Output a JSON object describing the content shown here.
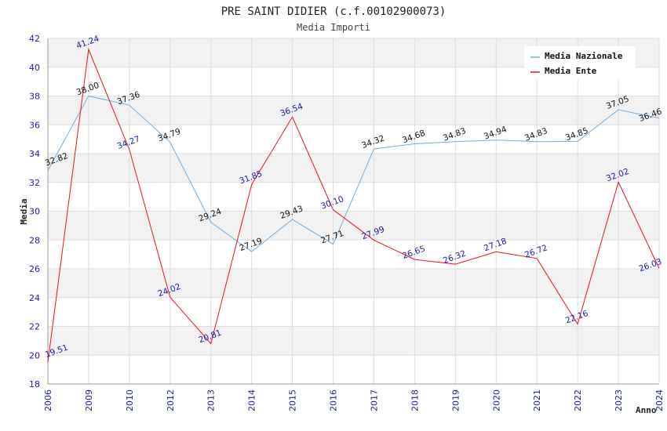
{
  "chart_data": {
    "type": "line",
    "title": "PRE SAINT DIDIER (c.f.00102900073)",
    "subtitle": "Media Importi",
    "xlabel": "Anno",
    "ylabel": "Media",
    "ylim": [
      18,
      42
    ],
    "yticks": [
      "18",
      "20",
      "22",
      "24",
      "26",
      "28",
      "30",
      "32",
      "34",
      "36",
      "38",
      "40",
      "42"
    ],
    "categories": [
      "2006",
      "2009",
      "2010",
      "2012",
      "2013",
      "2014",
      "2015",
      "2016",
      "2017",
      "2018",
      "2019",
      "2020",
      "2021",
      "2022",
      "2023",
      "2024"
    ],
    "grid": true,
    "legend_position": "top-right",
    "series": [
      {
        "name": "Media Nazionale",
        "color": "#6aaee8",
        "values": [
          32.82,
          38.0,
          37.36,
          34.79,
          29.24,
          27.19,
          29.43,
          27.71,
          34.32,
          34.68,
          34.83,
          34.94,
          34.83,
          34.85,
          37.05,
          36.46
        ],
        "labels": [
          "32.82",
          "38.00",
          "37.36",
          "34.79",
          "29.24",
          "27.19",
          "29.43",
          "27.71",
          "34.32",
          "34.68",
          "34.83",
          "34.94",
          "34.83",
          "34.85",
          "37.05",
          "36.46"
        ]
      },
      {
        "name": "Media Ente",
        "color": "#e8141b",
        "values": [
          19.51,
          41.24,
          34.27,
          24.02,
          20.81,
          31.85,
          36.54,
          30.1,
          27.99,
          26.65,
          26.32,
          27.18,
          26.72,
          22.16,
          32.02,
          26.03
        ],
        "labels": [
          "19.51",
          "41.24",
          "34.27",
          "24.02",
          "20.81",
          "31.85",
          "36.54",
          "30.10",
          "27.99",
          "26.65",
          "26.32",
          "27.18",
          "26.72",
          "22.16",
          "32.02",
          "26.03"
        ]
      }
    ]
  }
}
